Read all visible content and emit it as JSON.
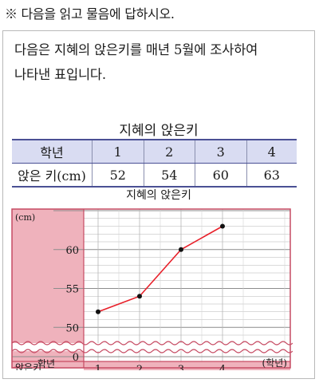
{
  "instruction": "※ 다음을 읽고 물음에 답하시오.",
  "paragraph": {
    "line1": "다음은 지혜의 앉은키를 매년 5월에 조사하여",
    "line2": "나타낸 표입니다."
  },
  "table": {
    "title": "지혜의 앉은키",
    "header": [
      "학년",
      "1",
      "2",
      "3",
      "4"
    ],
    "row": [
      "앉은 키(cm)",
      "52",
      "54",
      "60",
      "63"
    ]
  },
  "chart_data": {
    "type": "line",
    "title": "지혜의 앉은키",
    "x": [
      1,
      2,
      3,
      4
    ],
    "values": [
      52,
      54,
      60,
      63
    ],
    "x_tick_labels": [
      "1",
      "2",
      "3",
      "4"
    ],
    "y_ticks": [
      0,
      50,
      55,
      60
    ],
    "y_unit": "(cm)",
    "x_unit": "(학년)",
    "corner_top": "앉은키",
    "corner_bottom": "학년",
    "axis_break": "between 0 and 50",
    "ylim": [
      49,
      65
    ],
    "grid": true,
    "colors": {
      "line": "#e8202a",
      "marker": "#111111",
      "frame": "#c64b63",
      "axis_fill": "#efb2bc",
      "grid": "#b5b5b5"
    }
  }
}
